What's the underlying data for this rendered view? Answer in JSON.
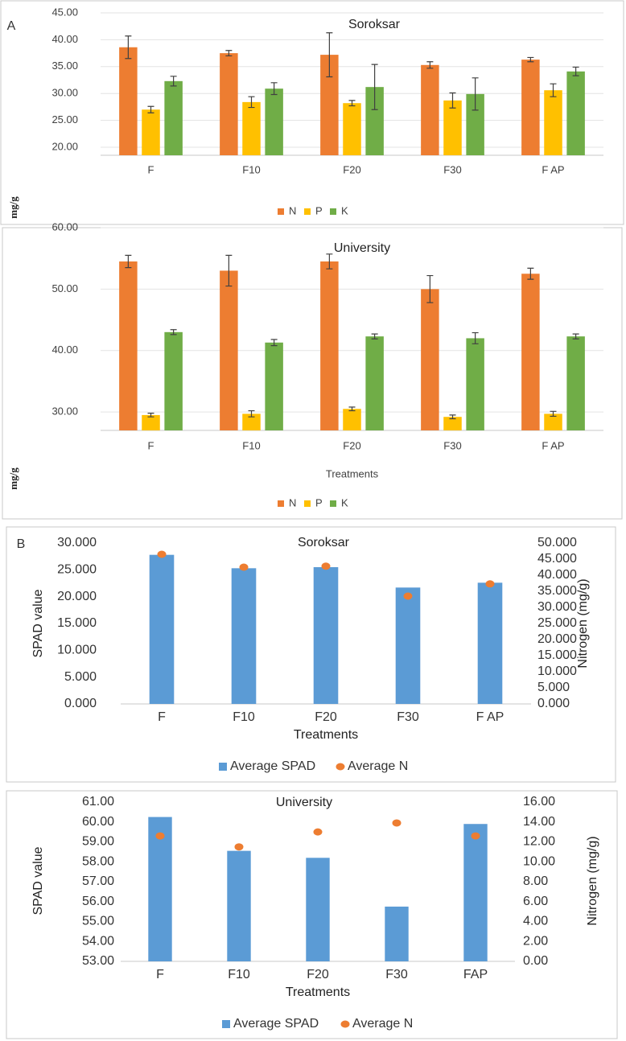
{
  "chart_data": [
    {
      "type": "bar",
      "panel_label": "A",
      "title": "Soroksar",
      "ylabel": "mg/g",
      "grid": true,
      "categories": [
        "F",
        "F10",
        "F20",
        "F30",
        "F AP"
      ],
      "ylim": [
        18.5,
        45
      ],
      "yticks": [
        {
          "value": 20,
          "label": "20.00"
        },
        {
          "value": 25,
          "label": "25.00"
        },
        {
          "value": 30,
          "label": "30.00"
        },
        {
          "value": 35,
          "label": "35.00"
        },
        {
          "value": 40,
          "label": "40.00"
        },
        {
          "value": 45,
          "label": "45.00"
        }
      ],
      "series": [
        {
          "name": "N",
          "color": "#ed7d31",
          "values": [
            38.6,
            37.5,
            37.2,
            35.3,
            36.3
          ],
          "errors": [
            2.1,
            0.5,
            4.1,
            0.6,
            0.4
          ]
        },
        {
          "name": "P",
          "color": "#ffc000",
          "values": [
            27.0,
            28.4,
            28.2,
            28.7,
            30.6
          ],
          "errors": [
            0.6,
            1.0,
            0.5,
            1.4,
            1.2
          ]
        },
        {
          "name": "K",
          "color": "#70ad47",
          "values": [
            32.3,
            30.9,
            31.2,
            29.9,
            34.1
          ],
          "errors": [
            0.9,
            1.1,
            4.2,
            3.0,
            0.8
          ]
        }
      ]
    },
    {
      "type": "bar",
      "title": "University",
      "xlabel": "Treatments",
      "ylabel": "mg/g",
      "grid": true,
      "categories": [
        "F",
        "F10",
        "F20",
        "F30",
        "F AP"
      ],
      "ylim": [
        27,
        60
      ],
      "yticks": [
        {
          "value": 30,
          "label": "30.00"
        },
        {
          "value": 40,
          "label": "40.00"
        },
        {
          "value": 50,
          "label": "50.00"
        },
        {
          "value": 60,
          "label": "60.00"
        }
      ],
      "series": [
        {
          "name": "N",
          "color": "#ed7d31",
          "values": [
            54.5,
            53.0,
            54.5,
            50.0,
            52.5
          ],
          "errors": [
            1.0,
            2.5,
            1.2,
            2.2,
            0.9
          ]
        },
        {
          "name": "P",
          "color": "#ffc000",
          "values": [
            29.5,
            29.7,
            30.5,
            29.2,
            29.7
          ],
          "errors": [
            0.3,
            0.5,
            0.3,
            0.3,
            0.4
          ]
        },
        {
          "name": "K",
          "color": "#70ad47",
          "values": [
            43.0,
            41.3,
            42.3,
            42.0,
            42.3
          ],
          "errors": [
            0.4,
            0.5,
            0.4,
            0.9,
            0.4
          ]
        }
      ]
    },
    {
      "type": "combo",
      "panel_label": "B",
      "title": "Soroksar",
      "xlabel": "Treatments",
      "ylabel": "SPAD value",
      "y2label": "Nitrogen (mg/g)",
      "grid": false,
      "categories": [
        "F",
        "F10",
        "F20",
        "F30",
        "F AP"
      ],
      "ylim": [
        0,
        30
      ],
      "yticks": [
        {
          "value": 0,
          "label": "0.000"
        },
        {
          "value": 5,
          "label": "5.000"
        },
        {
          "value": 10,
          "label": "10.000"
        },
        {
          "value": 15,
          "label": "15.000"
        },
        {
          "value": 20,
          "label": "20.000"
        },
        {
          "value": 25,
          "label": "25.000"
        },
        {
          "value": 30,
          "label": "30.000"
        }
      ],
      "y2lim": [
        0,
        50
      ],
      "y2ticks": [
        {
          "value": 0,
          "label": "0.000"
        },
        {
          "value": 5,
          "label": "5.000"
        },
        {
          "value": 10,
          "label": "10.000"
        },
        {
          "value": 15,
          "label": "15.000"
        },
        {
          "value": 20,
          "label": "20.000"
        },
        {
          "value": 25,
          "label": "25.000"
        },
        {
          "value": 30,
          "label": "30.000"
        },
        {
          "value": 35,
          "label": "35.000"
        },
        {
          "value": 40,
          "label": "40.000"
        },
        {
          "value": 45,
          "label": "45.000"
        },
        {
          "value": 50,
          "label": "50.000"
        }
      ],
      "series": [
        {
          "name": "Average SPAD",
          "color": "#5b9bd5",
          "values": [
            27.8,
            25.3,
            25.5,
            21.7,
            22.6
          ]
        },
        {
          "name": "Average N",
          "color": "#ed7d31",
          "axis": "y2",
          "values": [
            46.5,
            42.5,
            42.8,
            33.5,
            37.3
          ]
        }
      ]
    },
    {
      "type": "combo",
      "title": "University",
      "xlabel": "Treatments",
      "ylabel": "SPAD value",
      "y2label": "Nitrogen (mg/g)",
      "grid": false,
      "categories": [
        "F",
        "F10",
        "F20",
        "F30",
        "FAP"
      ],
      "ylim": [
        53,
        61
      ],
      "yticks": [
        {
          "value": 53,
          "label": "53.00"
        },
        {
          "value": 54,
          "label": "54.00"
        },
        {
          "value": 55,
          "label": "55.00"
        },
        {
          "value": 56,
          "label": "56.00"
        },
        {
          "value": 57,
          "label": "57.00"
        },
        {
          "value": 58,
          "label": "58.00"
        },
        {
          "value": 59,
          "label": "59.00"
        },
        {
          "value": 60,
          "label": "60.00"
        },
        {
          "value": 61,
          "label": "61.00"
        }
      ],
      "y2lim": [
        0,
        16
      ],
      "y2ticks": [
        {
          "value": 0,
          "label": "0.00"
        },
        {
          "value": 2,
          "label": "2.00"
        },
        {
          "value": 4,
          "label": "4.00"
        },
        {
          "value": 6,
          "label": "6.00"
        },
        {
          "value": 8,
          "label": "8.00"
        },
        {
          "value": 10,
          "label": "10.00"
        },
        {
          "value": 12,
          "label": "12.00"
        },
        {
          "value": 14,
          "label": "14.00"
        },
        {
          "value": 16,
          "label": "16.00"
        }
      ],
      "series": [
        {
          "name": "Average SPAD",
          "color": "#5b9bd5",
          "values": [
            60.25,
            58.55,
            58.2,
            55.75,
            59.9
          ]
        },
        {
          "name": "Average N",
          "color": "#ed7d31",
          "axis": "y2",
          "values": [
            12.6,
            11.5,
            13.0,
            13.9,
            12.6
          ]
        }
      ]
    }
  ]
}
